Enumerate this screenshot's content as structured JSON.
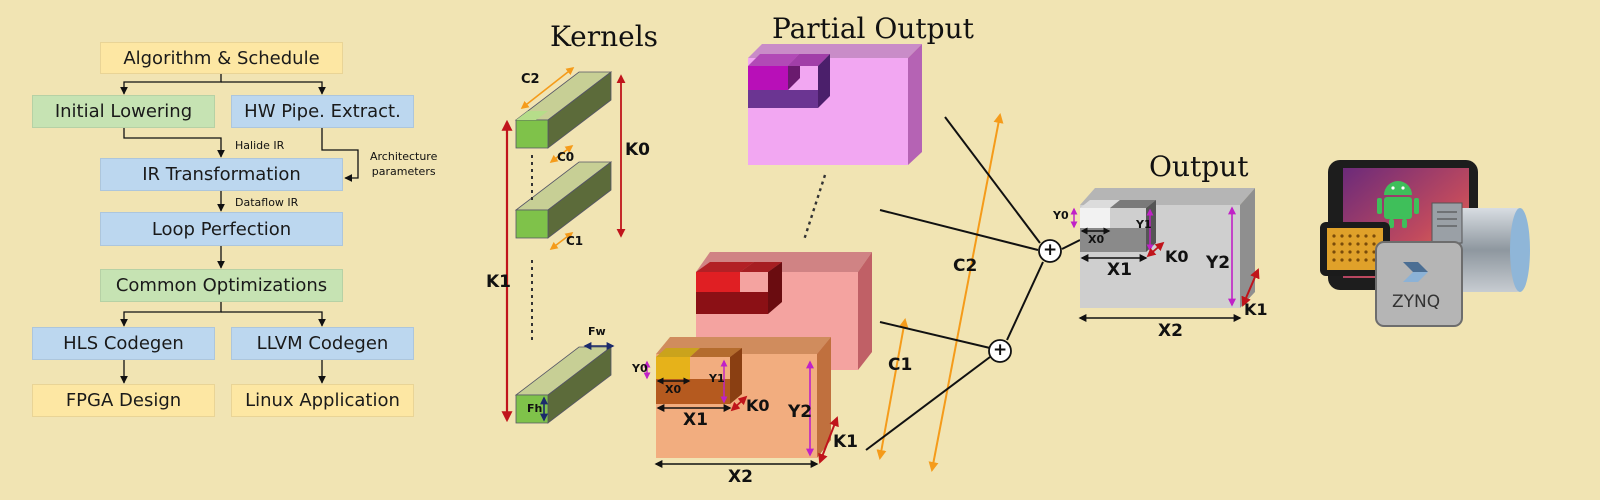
{
  "flow": {
    "algorithm": "Algorithm & Schedule",
    "initial_lowering": "Initial Lowering",
    "hw_pipe": "HW Pipe. Extract.",
    "halide_ir": "Halide IR",
    "architecture_params_line1": "Architecture",
    "architecture_params_line2": "parameters",
    "ir_transformation": "IR Transformation",
    "dataflow_ir": "Dataflow IR",
    "loop_perfection": "Loop Perfection",
    "common_opt": "Common Optimizations",
    "hls_codegen": "HLS Codegen",
    "llvm_codegen": "LLVM Codegen",
    "fpga_design": "FPGA Design",
    "linux_app": "Linux Application"
  },
  "titles": {
    "kernels": "Kernels",
    "partial_output": "Partial Output",
    "output": "Output"
  },
  "kernel_labels": {
    "c2": "C2",
    "c0": "C0",
    "c1": "C1",
    "k0": "K0",
    "k1": "K1",
    "fw": "Fw",
    "fh": "Fh"
  },
  "partial_labels": {
    "y0": "Y0",
    "x0": "X0",
    "y1": "Y1",
    "k0": "K0",
    "x1": "X1",
    "y2": "Y2",
    "k1": "K1",
    "x2": "X2",
    "c1": "C1",
    "c2": "C2"
  },
  "output_labels": {
    "y0": "Y0",
    "x0": "X0",
    "y1": "Y1",
    "k0": "K0",
    "x1": "X1",
    "y2": "Y2",
    "k1": "K1",
    "x2": "X2"
  },
  "sum_symbol": "+",
  "device": {
    "brand": "ZYNQ"
  },
  "colors": {
    "background": "#f1e4b3",
    "yellow_box": "#fde7a3",
    "green_box": "#c6e3b3",
    "blue_box": "#bcd7ef",
    "red_arrow": "#c0141b",
    "orange_arrow": "#f59b1a",
    "magenta_arrow": "#c021c7"
  }
}
